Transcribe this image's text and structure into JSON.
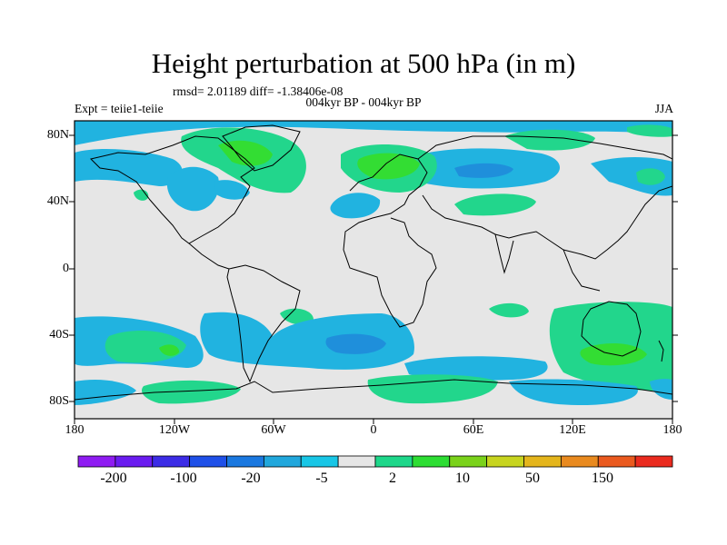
{
  "title": "Height perturbation at 500 hPa (in m)",
  "stats_line": "rmsd= 2.01189 diff= -1.38406e-08",
  "experiment": "Expt = teiie1-teiie",
  "period": "004kyr BP - 004kyr BP",
  "season": "JJA",
  "lat_ticks": [
    "80N",
    "40N",
    "0",
    "40S",
    "80S"
  ],
  "lon_ticks": [
    "180",
    "120W",
    "60W",
    "0",
    "60E",
    "120E",
    "180"
  ],
  "colorbar": {
    "labels": [
      "-200",
      "-100",
      "-20",
      "-5",
      "2",
      "10",
      "50",
      "150"
    ],
    "colors": [
      "#8f1cf2",
      "#6a1cf0",
      "#3c2ce6",
      "#1f50e8",
      "#1a78e0",
      "#21a7dc",
      "#18c6e6",
      "#e6e6e6",
      "#1ed78a",
      "#2ddd33",
      "#7ad21a",
      "#c7d41f",
      "#e4b51c",
      "#e98a1f",
      "#ea5a1f",
      "#ea2b1f"
    ]
  },
  "colors": {
    "background": "#e6e6e6",
    "neg_small": "#21b3e0",
    "neg_mid": "#1f8fdb",
    "pos_small": "#22d68c",
    "pos_mid": "#33dd33",
    "pos_large": "#7bd31c"
  }
}
